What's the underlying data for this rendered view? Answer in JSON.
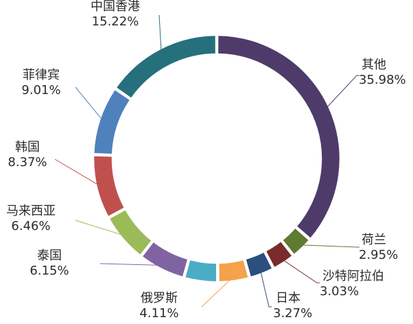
{
  "chart_data": {
    "type": "pie",
    "variant": "donut",
    "title": "",
    "start_angle_deg": 0,
    "direction": "clockwise",
    "legend": "none",
    "slices": [
      {
        "label": "其他",
        "value": 35.98,
        "value_text": "35.98%",
        "color": "#4e3b6a"
      },
      {
        "label": "荷兰",
        "value": 2.95,
        "value_text": "2.95%",
        "color": "#5f7a31"
      },
      {
        "label": "沙特阿拉伯",
        "value": 3.03,
        "value_text": "3.03%",
        "color": "#7a2b2b"
      },
      {
        "label": "日本",
        "value": 3.27,
        "value_text": "3.27%",
        "color": "#2b4f7e"
      },
      {
        "label": "俄罗斯",
        "value": 4.11,
        "value_text": "4.11%",
        "color": "#f4a24b"
      },
      {
        "label": "",
        "value": 4.38,
        "value_text": "",
        "color": "#4bacc6"
      },
      {
        "label": "泰国",
        "value": 6.15,
        "value_text": "6.15%",
        "color": "#8064a2"
      },
      {
        "label": "马来西亚",
        "value": 6.46,
        "value_text": "6.46%",
        "color": "#9bbb59"
      },
      {
        "label": "韩国",
        "value": 8.37,
        "value_text": "8.37%",
        "color": "#c0504d"
      },
      {
        "label": "菲律宾",
        "value": 9.01,
        "value_text": "9.01%",
        "color": "#4f81bd"
      },
      {
        "label": "中国香港",
        "value": 15.22,
        "value_text": "15.22%",
        "color": "#25707c"
      }
    ]
  }
}
